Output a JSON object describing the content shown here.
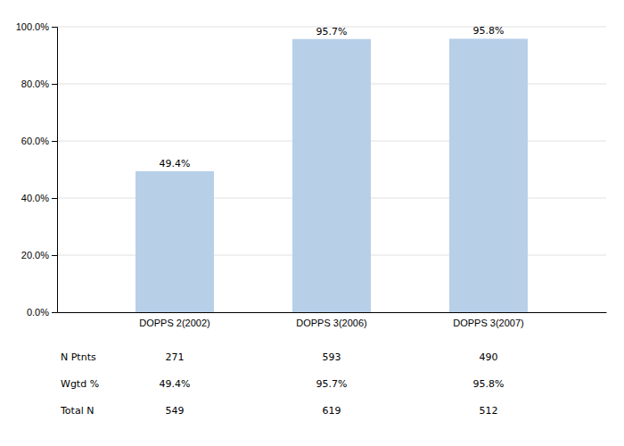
{
  "chart_data": {
    "type": "bar",
    "categories": [
      "DOPPS 2(2002)",
      "DOPPS 3(2006)",
      "DOPPS 3(2007)"
    ],
    "values": [
      49.4,
      95.7,
      95.8
    ],
    "value_labels": [
      "49.4%",
      "95.7%",
      "95.8%"
    ],
    "data_labels": true,
    "color": "#b8cfe8",
    "ylim": [
      0,
      100
    ],
    "yticks": [
      {
        "value": 0,
        "label": "0.0%"
      },
      {
        "value": 20,
        "label": "20.0%"
      },
      {
        "value": 40,
        "label": "40.0%"
      },
      {
        "value": 60,
        "label": "60.0%"
      },
      {
        "value": 80,
        "label": "80.0%"
      },
      {
        "value": 100,
        "label": "100.0%"
      }
    ],
    "grid": true,
    "table": {
      "rows": [
        "N Ptnts",
        "Wgtd %",
        "Total N"
      ],
      "cells": [
        [
          "271",
          "593",
          "490"
        ],
        [
          "49.4%",
          "95.7%",
          "95.8%"
        ],
        [
          "549",
          "619",
          "512"
        ]
      ]
    }
  }
}
